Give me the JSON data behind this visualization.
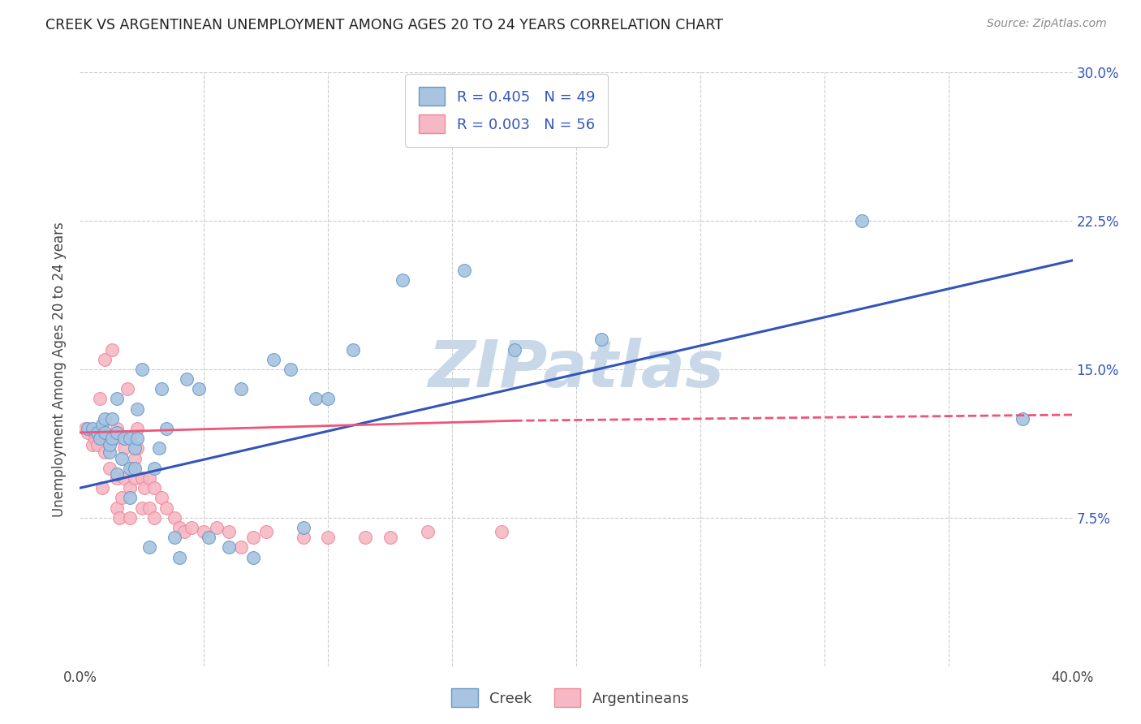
{
  "title": "CREEK VS ARGENTINEAN UNEMPLOYMENT AMONG AGES 20 TO 24 YEARS CORRELATION CHART",
  "source": "Source: ZipAtlas.com",
  "ylabel": "Unemployment Among Ages 20 to 24 years",
  "xlim": [
    0.0,
    0.4
  ],
  "ylim": [
    0.0,
    0.3
  ],
  "xticks": [
    0.0,
    0.05,
    0.1,
    0.15,
    0.2,
    0.25,
    0.3,
    0.35,
    0.4
  ],
  "yticks": [
    0.0,
    0.075,
    0.15,
    0.225,
    0.3
  ],
  "creek_color": "#A8C4E0",
  "creek_edge_color": "#6699CC",
  "argentinean_color": "#F5B8C4",
  "argentinean_edge_color": "#EE8899",
  "creek_line_color": "#3355BB",
  "argentinean_line_color": "#EE5577",
  "watermark_color": "#C8D8E8",
  "legend_r_creek": "R = 0.405",
  "legend_n_creek": "N = 49",
  "legend_r_arg": "R = 0.003",
  "legend_n_arg": "N = 56",
  "creek_points_x": [
    0.003,
    0.005,
    0.007,
    0.008,
    0.009,
    0.01,
    0.01,
    0.012,
    0.012,
    0.013,
    0.013,
    0.015,
    0.015,
    0.015,
    0.017,
    0.018,
    0.02,
    0.02,
    0.02,
    0.022,
    0.022,
    0.023,
    0.023,
    0.025,
    0.028,
    0.03,
    0.032,
    0.033,
    0.035,
    0.038,
    0.04,
    0.043,
    0.048,
    0.052,
    0.06,
    0.065,
    0.07,
    0.078,
    0.085,
    0.09,
    0.095,
    0.1,
    0.11,
    0.13,
    0.155,
    0.175,
    0.21,
    0.315,
    0.38
  ],
  "creek_points_y": [
    0.12,
    0.12,
    0.118,
    0.115,
    0.122,
    0.118,
    0.125,
    0.108,
    0.112,
    0.115,
    0.125,
    0.097,
    0.118,
    0.135,
    0.105,
    0.115,
    0.085,
    0.1,
    0.115,
    0.1,
    0.11,
    0.115,
    0.13,
    0.15,
    0.06,
    0.1,
    0.11,
    0.14,
    0.12,
    0.065,
    0.055,
    0.145,
    0.14,
    0.065,
    0.06,
    0.14,
    0.055,
    0.155,
    0.15,
    0.07,
    0.135,
    0.135,
    0.16,
    0.195,
    0.2,
    0.16,
    0.165,
    0.225,
    0.125
  ],
  "argentinean_points_x": [
    0.002,
    0.003,
    0.005,
    0.006,
    0.006,
    0.007,
    0.008,
    0.008,
    0.009,
    0.01,
    0.01,
    0.01,
    0.012,
    0.012,
    0.013,
    0.014,
    0.015,
    0.015,
    0.015,
    0.016,
    0.017,
    0.018,
    0.018,
    0.019,
    0.02,
    0.02,
    0.021,
    0.022,
    0.022,
    0.023,
    0.023,
    0.025,
    0.025,
    0.026,
    0.028,
    0.028,
    0.03,
    0.03,
    0.033,
    0.035,
    0.038,
    0.04,
    0.042,
    0.045,
    0.05,
    0.055,
    0.06,
    0.065,
    0.07,
    0.075,
    0.09,
    0.1,
    0.115,
    0.125,
    0.14,
    0.17
  ],
  "argentinean_points_y": [
    0.12,
    0.118,
    0.112,
    0.115,
    0.118,
    0.112,
    0.12,
    0.135,
    0.09,
    0.108,
    0.115,
    0.155,
    0.1,
    0.115,
    0.16,
    0.115,
    0.08,
    0.095,
    0.12,
    0.075,
    0.085,
    0.095,
    0.11,
    0.14,
    0.075,
    0.09,
    0.1,
    0.095,
    0.105,
    0.11,
    0.12,
    0.08,
    0.095,
    0.09,
    0.08,
    0.095,
    0.075,
    0.09,
    0.085,
    0.08,
    0.075,
    0.07,
    0.068,
    0.07,
    0.068,
    0.07,
    0.068,
    0.06,
    0.065,
    0.068,
    0.065,
    0.065,
    0.065,
    0.065,
    0.068,
    0.068
  ],
  "creek_trend_x0": 0.0,
  "creek_trend_x1": 0.4,
  "creek_trend_y0": 0.09,
  "creek_trend_y1": 0.205,
  "arg_trend_x0": 0.0,
  "arg_trend_x1": 0.175,
  "arg_trend_y0": 0.118,
  "arg_trend_y1": 0.124,
  "arg_trend_dash_x0": 0.175,
  "arg_trend_dash_x1": 0.4,
  "arg_trend_dash_y0": 0.124,
  "arg_trend_dash_y1": 0.127,
  "background_color": "#FFFFFF",
  "grid_color": "#CCCCCC"
}
